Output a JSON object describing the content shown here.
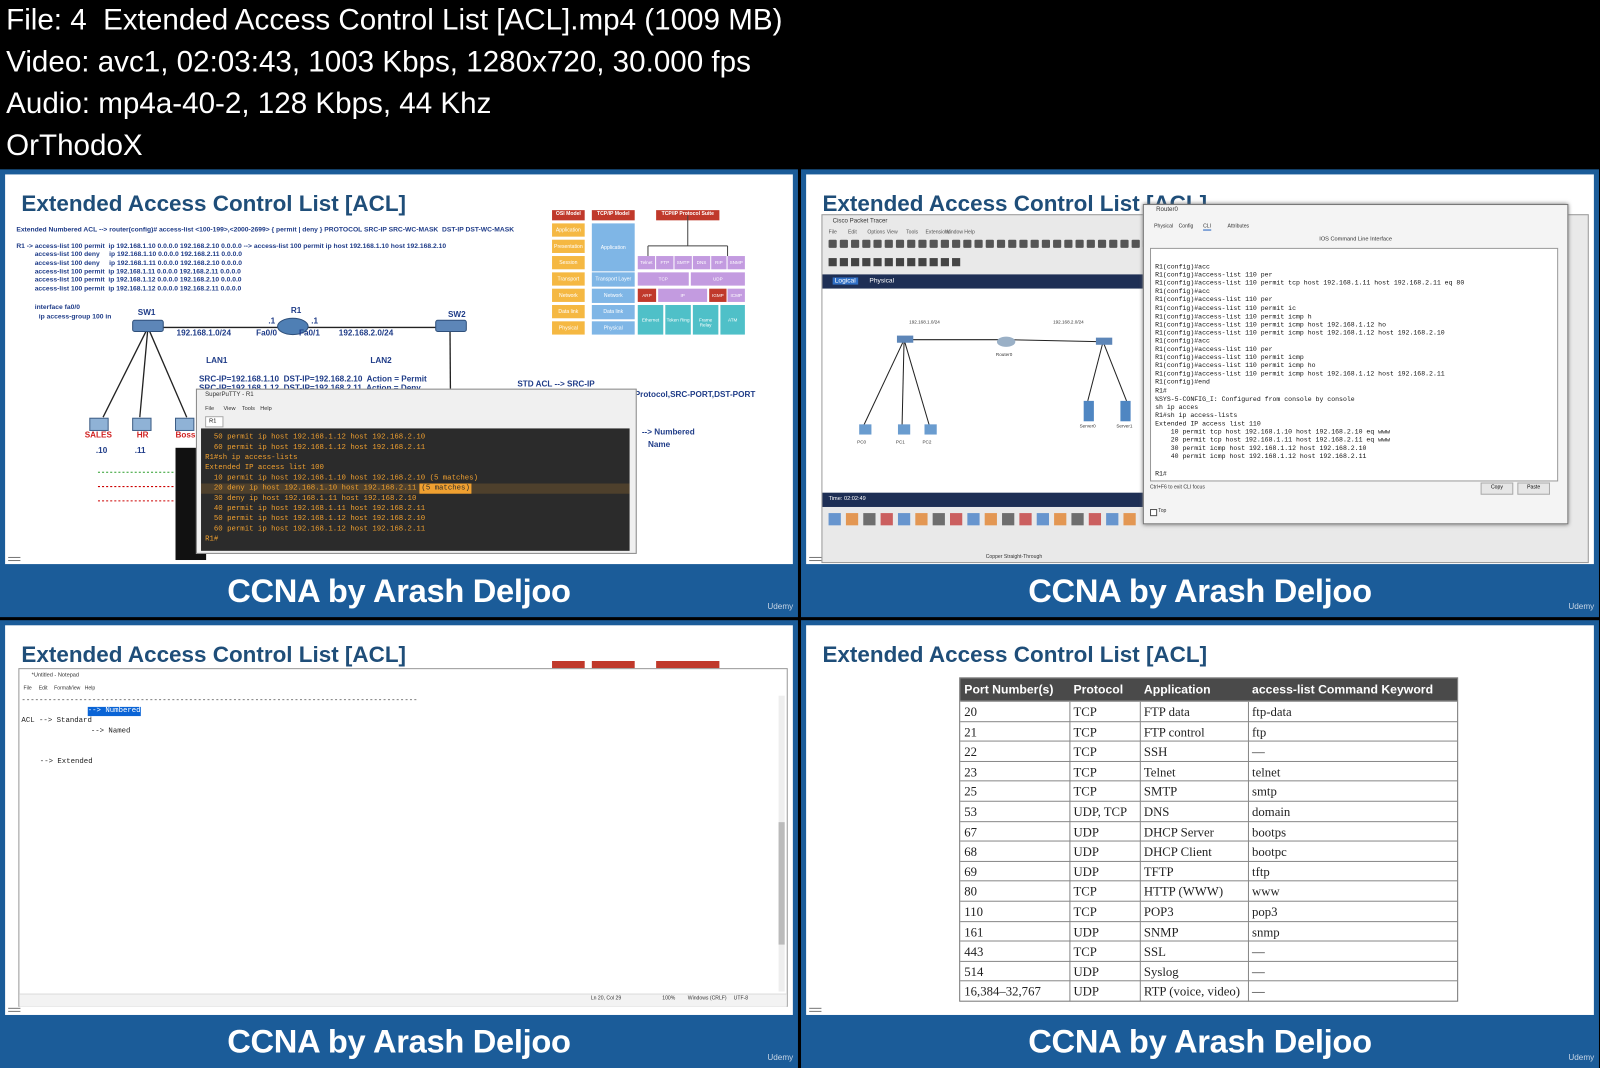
{
  "header": {
    "lines": [
      "File: 4  Extended Access Control List [ACL].mp4 (1009 MB)",
      "Video: avc1, 02:03:43, 1003 Kbps, 1280x720, 30.000 fps",
      "Audio: mp4a-40-2, 128 Kbps, 44 Khz",
      "OrThodoX"
    ]
  },
  "panels": [
    {
      "title": "Extended Access Control List [ACL]",
      "footer": "CCNA by Arash Deljoo",
      "watermark": "Udemy"
    },
    {
      "title": "Extended Access Control List [ACL]",
      "footer": "CCNA by Arash Deljoo",
      "watermark": "Udemy"
    },
    {
      "title": "Extended Access Control List [ACL]",
      "footer": "CCNA by Arash Deljoo",
      "watermark": "Udemy"
    },
    {
      "title": "Extended Access Control List [ACL]",
      "footer": "CCNA by Arash Deljoo",
      "watermark": "Udemy"
    }
  ],
  "slide1": {
    "syntax": "Extended Numbered ACL --> router(config)# access-list <100-199>,<2000-2699> { permit | deny } PROTOCOL SRC-IP SRC-WC-MASK  DST-IP DST-WC-MASK",
    "commands": [
      "R1 -> access-list 100 permit  ip 192.168.1.10 0.0.0.0 192.168.2.10 0.0.0.0 --> access-list 100 permit ip host 192.168.1.10 host 192.168.2.10",
      "access-list 100 deny     ip 192.168.1.10 0.0.0.0 192.168.2.11 0.0.0.0",
      "access-list 100 deny     ip 192.168.1.11 0.0.0.0 192.168.2.10 0.0.0.0",
      "access-list 100 permit  ip 192.168.1.11 0.0.0.0 192.168.2.11 0.0.0.0",
      "access-list 100 permit  ip 192.168.1.12 0.0.0.0 192.168.2.10 0.0.0.0",
      "access-list 100 permit  ip 192.168.1.12 0.0.0.0 192.168.2.11 0.0.0.0"
    ],
    "interface": [
      "interface fa0/0",
      "ip access-group 100 in"
    ],
    "labels": [
      "SW1",
      "R1",
      "SW2",
      "192.168.1.0/24",
      "Fa0/0",
      "Fa0/1",
      "192.168.2.0/24",
      ".1",
      ".1",
      "LAN1",
      "LAN2",
      "SRC-IP=192.168.1.10  DST-IP=192.168.2.10  Action = Permit",
      "SRC-IP=192.168.1.12  DST-IP=192.168.2.11  Action = Deny",
      "STD ACL --> SRC-IP",
      "Protocol,SRC-PORT,DST-PORT",
      "--> Numbered",
      "Name",
      ".10",
      ".11"
    ],
    "hosts": [
      "SALES",
      "HR",
      "Boss"
    ],
    "osi": {
      "headers": [
        "OSI Model",
        "TCP/IP Model",
        "TCP/IP Protocol Suite"
      ],
      "osi_layers": [
        "Application",
        "Presentation",
        "Session",
        "Transport",
        "Network",
        "Data link",
        "Physical"
      ],
      "tcpip_layers": [
        "Application",
        "Transport Layer",
        "Network",
        "Data link",
        "Physical"
      ],
      "protocols": [
        "Telnet",
        "FTP",
        "SMTP",
        "DNS",
        "RIP",
        "SNMP",
        "TCP",
        "UDP",
        "ARP",
        "IP",
        "IGMP",
        "ICMP",
        "Ethernet",
        "Token Ring",
        "Frame Relay",
        "ATM"
      ]
    },
    "terminal": {
      "title": "SuperPuTTY - R1",
      "menu": [
        "File",
        "View",
        "Tools",
        "Help"
      ],
      "tab": "R1",
      "lines": [
        {
          "text": "  50 permit ip host 192.168.1.12 host 192.168.2.10"
        },
        {
          "text": "  60 permit ip host 192.168.1.12 host 192.168.2.11"
        },
        {
          "text": "R1#sh ip access-lists"
        },
        {
          "text": "Extended IP access list 100"
        },
        {
          "text": "  10 permit ip host 192.168.1.10 host 192.168.2.10 (5 matches)"
        },
        {
          "text": "  20 deny ip host 192.168.1.10 host 192.168.2.11",
          "highlighted": "(5 matches)"
        },
        {
          "text": "  30 deny ip host 192.168.1.11 host 192.168.2.10"
        },
        {
          "text": "  40 permit ip host 192.168.1.11 host 192.168.2.11"
        },
        {
          "text": "  50 permit ip host 192.168.1.12 host 192.168.2.10"
        },
        {
          "text": "  60 permit ip host 192.168.1.12 host 192.168.2.11"
        },
        {
          "text": "R1#"
        }
      ]
    }
  },
  "slide2": {
    "app_title": "Cisco Packet Tracer",
    "menu": [
      "File",
      "Edit",
      "Options",
      "View",
      "Tools",
      "Extensions",
      "Window",
      "Help"
    ],
    "views": [
      "Logical",
      "Physical"
    ],
    "devices": [
      "Router0",
      "Server0",
      "Server1",
      "PC0",
      "PC1",
      "PC2"
    ],
    "networks": [
      "192.168.1.0/24",
      "192.168.2.0/24"
    ],
    "time": "Time: 02:02:49",
    "cable": "Copper Straight-Through",
    "cli": {
      "title": "Router0",
      "tabs": [
        "Physical",
        "Config",
        "CLI",
        "Attributes"
      ],
      "heading": "IOS Command Line Interface",
      "lines": [
        "R1(config)#acc",
        "R1(config)#access-list 110 per",
        "R1(config)#access-list 110 permit tcp host 192.168.1.11 host 192.168.2.11 eq 80",
        "R1(config)#acc",
        "R1(config)#access-list 110 per",
        "R1(config)#access-list 110 permit ic",
        "R1(config)#access-list 110 permit icmp h",
        "R1(config)#access-list 110 permit icmp host 192.168.1.12 ho",
        "R1(config)#access-list 110 permit icmp host 192.168.1.12 host 192.168.2.10",
        "R1(config)#acc",
        "R1(config)#access-list 110 per",
        "R1(config)#access-list 110 permit icmp",
        "R1(config)#access-list 110 permit icmp ho",
        "R1(config)#access-list 110 permit icmp host 192.168.1.12 host 192.168.2.11",
        "R1(config)#end",
        "R1#",
        "%SYS-5-CONFIG_I: Configured from console by console",
        "sh ip acces",
        "R1#sh ip access-lists",
        "Extended IP access list 110",
        "    10 permit tcp host 192.168.1.10 host 192.168.2.10 eq www",
        "    20 permit tcp host 192.168.1.11 host 192.168.2.11 eq www",
        "    30 permit icmp host 192.168.1.12 host 192.168.2.10",
        "    40 permit icmp host 192.168.1.12 host 192.168.2.11",
        "",
        "R1#"
      ],
      "hint": "Ctrl+F6 to exit CLI focus",
      "buttons": [
        "Copy",
        "Paste"
      ],
      "checkbox": "Top"
    }
  },
  "slide3": {
    "title": "*Untitled - Notepad",
    "menu": [
      "File",
      "Edit",
      "Format",
      "View",
      "Help"
    ],
    "lines": [
      {
        "text": "------------------------------------------------------------------------------------------"
      },
      {
        "text": "--> Numbered",
        "selected": true
      },
      {
        "text": "ACL --> Standard"
      },
      {
        "text": "--> Named"
      },
      {
        "text": "--> Extended"
      }
    ],
    "status": [
      "Ln 20, Col 29",
      "100%",
      "Windows (CRLF)",
      "UTF-8"
    ]
  },
  "slide4": {
    "table": {
      "headers": [
        "Port Number(s)",
        "Protocol",
        "Application",
        "access-list Command Keyword"
      ],
      "rows": [
        [
          "20",
          "TCP",
          "FTP data",
          "ftp-data"
        ],
        [
          "21",
          "TCP",
          "FTP control",
          "ftp"
        ],
        [
          "22",
          "TCP",
          "SSH",
          "—"
        ],
        [
          "23",
          "TCP",
          "Telnet",
          "telnet"
        ],
        [
          "25",
          "TCP",
          "SMTP",
          "smtp"
        ],
        [
          "53",
          "UDP, TCP",
          "DNS",
          "domain"
        ],
        [
          "67",
          "UDP",
          "DHCP Server",
          "bootps"
        ],
        [
          "68",
          "UDP",
          "DHCP Client",
          "bootpc"
        ],
        [
          "69",
          "UDP",
          "TFTP",
          "tftp"
        ],
        [
          "80",
          "TCP",
          "HTTP (WWW)",
          "www"
        ],
        [
          "110",
          "TCP",
          "POP3",
          "pop3"
        ],
        [
          "161",
          "UDP",
          "SNMP",
          "snmp"
        ],
        [
          "443",
          "TCP",
          "SSL",
          "—"
        ],
        [
          "514",
          "UDP",
          "Syslog",
          "—"
        ],
        [
          "16,384–32,767",
          "UDP",
          "RTP (voice, video)",
          "—"
        ]
      ]
    }
  }
}
